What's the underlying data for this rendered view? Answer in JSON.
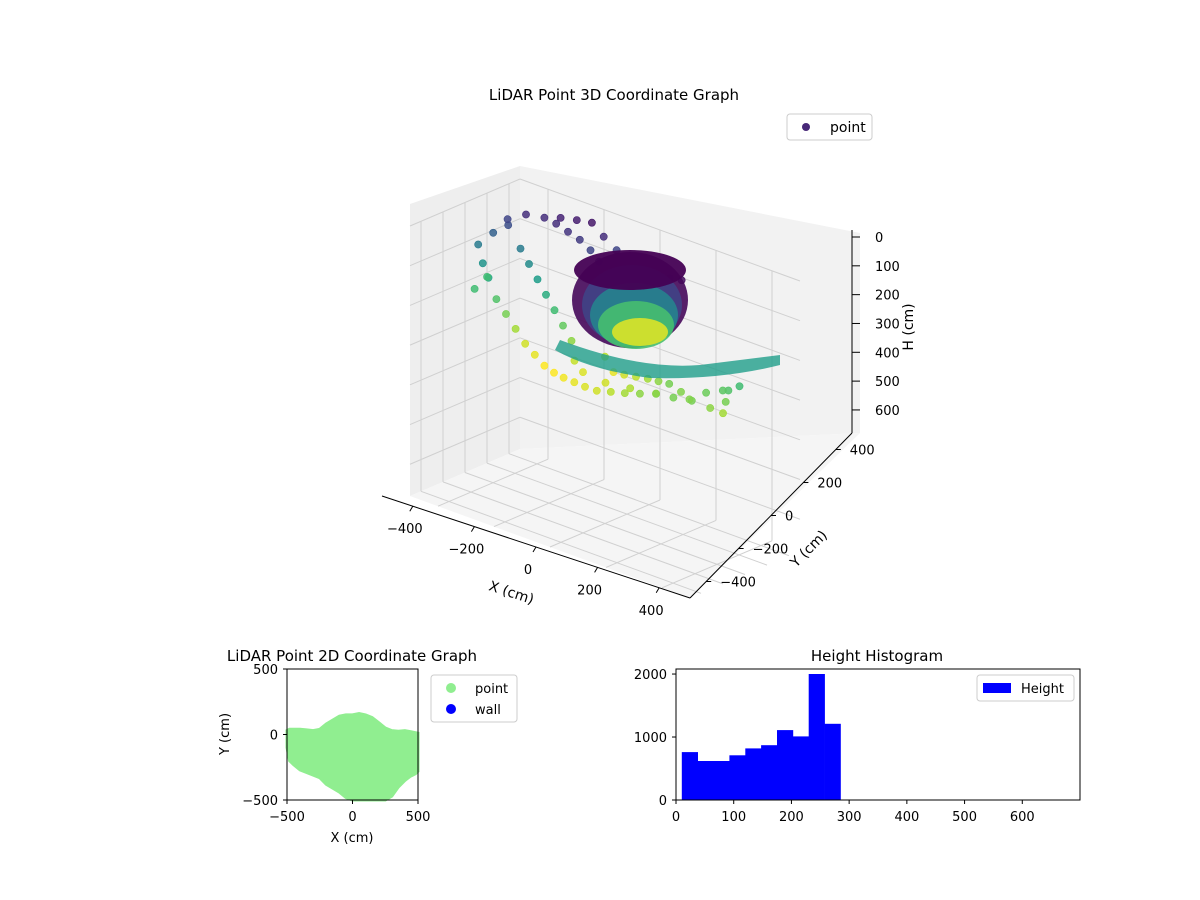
{
  "chart_data": [
    {
      "type": "scatter",
      "projection": "3d",
      "title": "LiDAR Point 3D Coordinate Graph",
      "xlabel": "X (cm)",
      "ylabel": "Y (cm)",
      "zlabel": "H (cm)",
      "xlim": [
        -500,
        500
      ],
      "ylim": [
        -500,
        500
      ],
      "zlim": [
        0,
        680
      ],
      "z_inverted": true,
      "xticks": [
        -400,
        -200,
        0,
        200,
        400
      ],
      "yticks": [
        -400,
        -200,
        0,
        200,
        400
      ],
      "zticks": [
        0,
        100,
        200,
        300,
        400,
        500,
        600
      ],
      "colormap": "viridis",
      "legend": {
        "entries": [
          "point"
        ],
        "placement": "top-right"
      },
      "grid": true,
      "series": [
        {
          "name": "point",
          "points": [
            [
              -500,
              120,
              120
            ],
            [
              -470,
              180,
              90
            ],
            [
              -440,
              240,
              70
            ],
            [
              -460,
              60,
              150
            ],
            [
              -420,
              10,
              170
            ],
            [
              -480,
              150,
              200
            ],
            [
              -450,
              260,
              60
            ],
            [
              -400,
              300,
              40
            ],
            [
              -350,
              340,
              40
            ],
            [
              -300,
              360,
              30
            ],
            [
              -250,
              380,
              25
            ],
            [
              -200,
              390,
              20
            ],
            [
              -150,
              370,
              40
            ],
            [
              -100,
              360,
              60
            ],
            [
              -380,
              -20,
              210
            ],
            [
              -330,
              -60,
              230
            ],
            [
              -280,
              -100,
              250
            ],
            [
              -230,
              -140,
              270
            ],
            [
              -180,
              -180,
              280
            ],
            [
              -130,
              -220,
              290
            ],
            [
              -80,
              -260,
              290
            ],
            [
              -30,
              -300,
              285
            ],
            [
              20,
              -330,
              280
            ],
            [
              70,
              -360,
              275
            ],
            [
              120,
              -380,
              270
            ],
            [
              170,
              -380,
              260
            ],
            [
              220,
              -380,
              250
            ],
            [
              270,
              -370,
              240
            ],
            [
              320,
              -350,
              230
            ],
            [
              370,
              -320,
              230
            ],
            [
              420,
              -280,
              230
            ],
            [
              470,
              -240,
              240
            ],
            [
              500,
              -200,
              250
            ],
            [
              490,
              -150,
              230
            ],
            [
              480,
              -100,
              210
            ],
            [
              500,
              -50,
              200
            ],
            [
              -50,
              100,
              100
            ],
            [
              0,
              120,
              80
            ],
            [
              50,
              140,
              60
            ],
            [
              100,
              120,
              40
            ],
            [
              150,
              100,
              30
            ],
            [
              200,
              80,
              20
            ],
            [
              250,
              60,
              10
            ],
            [
              0,
              0,
              260
            ],
            [
              50,
              -50,
              280
            ],
            [
              100,
              -80,
              270
            ],
            [
              150,
              -100,
              260
            ],
            [
              200,
              -120,
              250
            ],
            [
              250,
              -150,
              240
            ],
            [
              300,
              -180,
              230
            ],
            [
              -100,
              -50,
              240
            ],
            [
              -150,
              0,
              220
            ],
            [
              -200,
              50,
              200
            ],
            [
              -250,
              100,
              180
            ],
            [
              -300,
              150,
              160
            ],
            [
              -350,
              200,
              140
            ],
            [
              -400,
              250,
              120
            ],
            [
              -50,
              -150,
              265
            ],
            [
              0,
              -200,
              275
            ],
            [
              100,
              -250,
              270
            ],
            [
              200,
              -280,
              255
            ],
            [
              300,
              -300,
              240
            ],
            [
              400,
              -250,
              235
            ],
            [
              -100,
              200,
              70
            ],
            [
              -150,
              250,
              60
            ],
            [
              -200,
              280,
              50
            ],
            [
              -250,
              300,
              45
            ],
            [
              -300,
              320,
              40
            ],
            [
              350,
              -200,
              235
            ],
            [
              420,
              -150,
              225
            ],
            [
              460,
              -100,
              215
            ],
            [
              -450,
              -40,
              200
            ]
          ]
        }
      ]
    },
    {
      "type": "scatter",
      "title": "LiDAR Point 2D Coordinate Graph",
      "xlabel": "X (cm)",
      "ylabel": "Y (cm)",
      "xlim": [
        -500,
        500
      ],
      "ylim": [
        -500,
        500
      ],
      "xticks": [
        -500,
        0,
        500
      ],
      "yticks": [
        -500,
        0,
        500
      ],
      "legend": {
        "entries": [
          "point",
          "wall"
        ],
        "placement": "outside-right"
      },
      "series": [
        {
          "name": "point",
          "color": "#90ee90",
          "outline": [
            [
              -500,
              30
            ],
            [
              -480,
              40
            ],
            [
              -400,
              40
            ],
            [
              -350,
              35
            ],
            [
              -300,
              30
            ],
            [
              -250,
              40
            ],
            [
              -200,
              80
            ],
            [
              -150,
              110
            ],
            [
              -100,
              140
            ],
            [
              -50,
              150
            ],
            [
              0,
              150
            ],
            [
              50,
              160
            ],
            [
              100,
              150
            ],
            [
              150,
              130
            ],
            [
              200,
              90
            ],
            [
              250,
              50
            ],
            [
              300,
              30
            ],
            [
              350,
              25
            ],
            [
              400,
              30
            ],
            [
              450,
              20
            ],
            [
              500,
              10
            ],
            [
              500,
              -280
            ],
            [
              480,
              -300
            ],
            [
              440,
              -320
            ],
            [
              400,
              -350
            ],
            [
              350,
              -400
            ],
            [
              300,
              -470
            ],
            [
              250,
              -500
            ],
            [
              100,
              -500
            ],
            [
              0,
              -500
            ],
            [
              -50,
              -480
            ],
            [
              -100,
              -440
            ],
            [
              -150,
              -410
            ],
            [
              -200,
              -380
            ],
            [
              -250,
              -330
            ],
            [
              -300,
              -310
            ],
            [
              -350,
              -290
            ],
            [
              -400,
              -270
            ],
            [
              -450,
              -230
            ],
            [
              -480,
              -200
            ],
            [
              -500,
              -100
            ]
          ]
        },
        {
          "name": "wall",
          "color": "#0000ff",
          "points": []
        }
      ]
    },
    {
      "type": "bar",
      "subtype": "histogram",
      "title": "Height Histogram",
      "xlabel": "",
      "ylabel": "",
      "xlim": [
        0,
        700
      ],
      "ylim": [
        0,
        2080
      ],
      "xticks": [
        0,
        100,
        200,
        300,
        400,
        500,
        600
      ],
      "yticks": [
        0,
        1000,
        2000
      ],
      "legend": {
        "entries": [
          "Height"
        ],
        "placement": "top-right"
      },
      "series": [
        {
          "name": "Height",
          "color": "#0000ff",
          "bin_edges": [
            10,
            37.5,
            65,
            92.5,
            120,
            147.5,
            175,
            202.5,
            230,
            257.5,
            285
          ],
          "values": [
            760,
            620,
            620,
            710,
            820,
            870,
            1110,
            1010,
            2000,
            1210
          ]
        }
      ]
    }
  ]
}
